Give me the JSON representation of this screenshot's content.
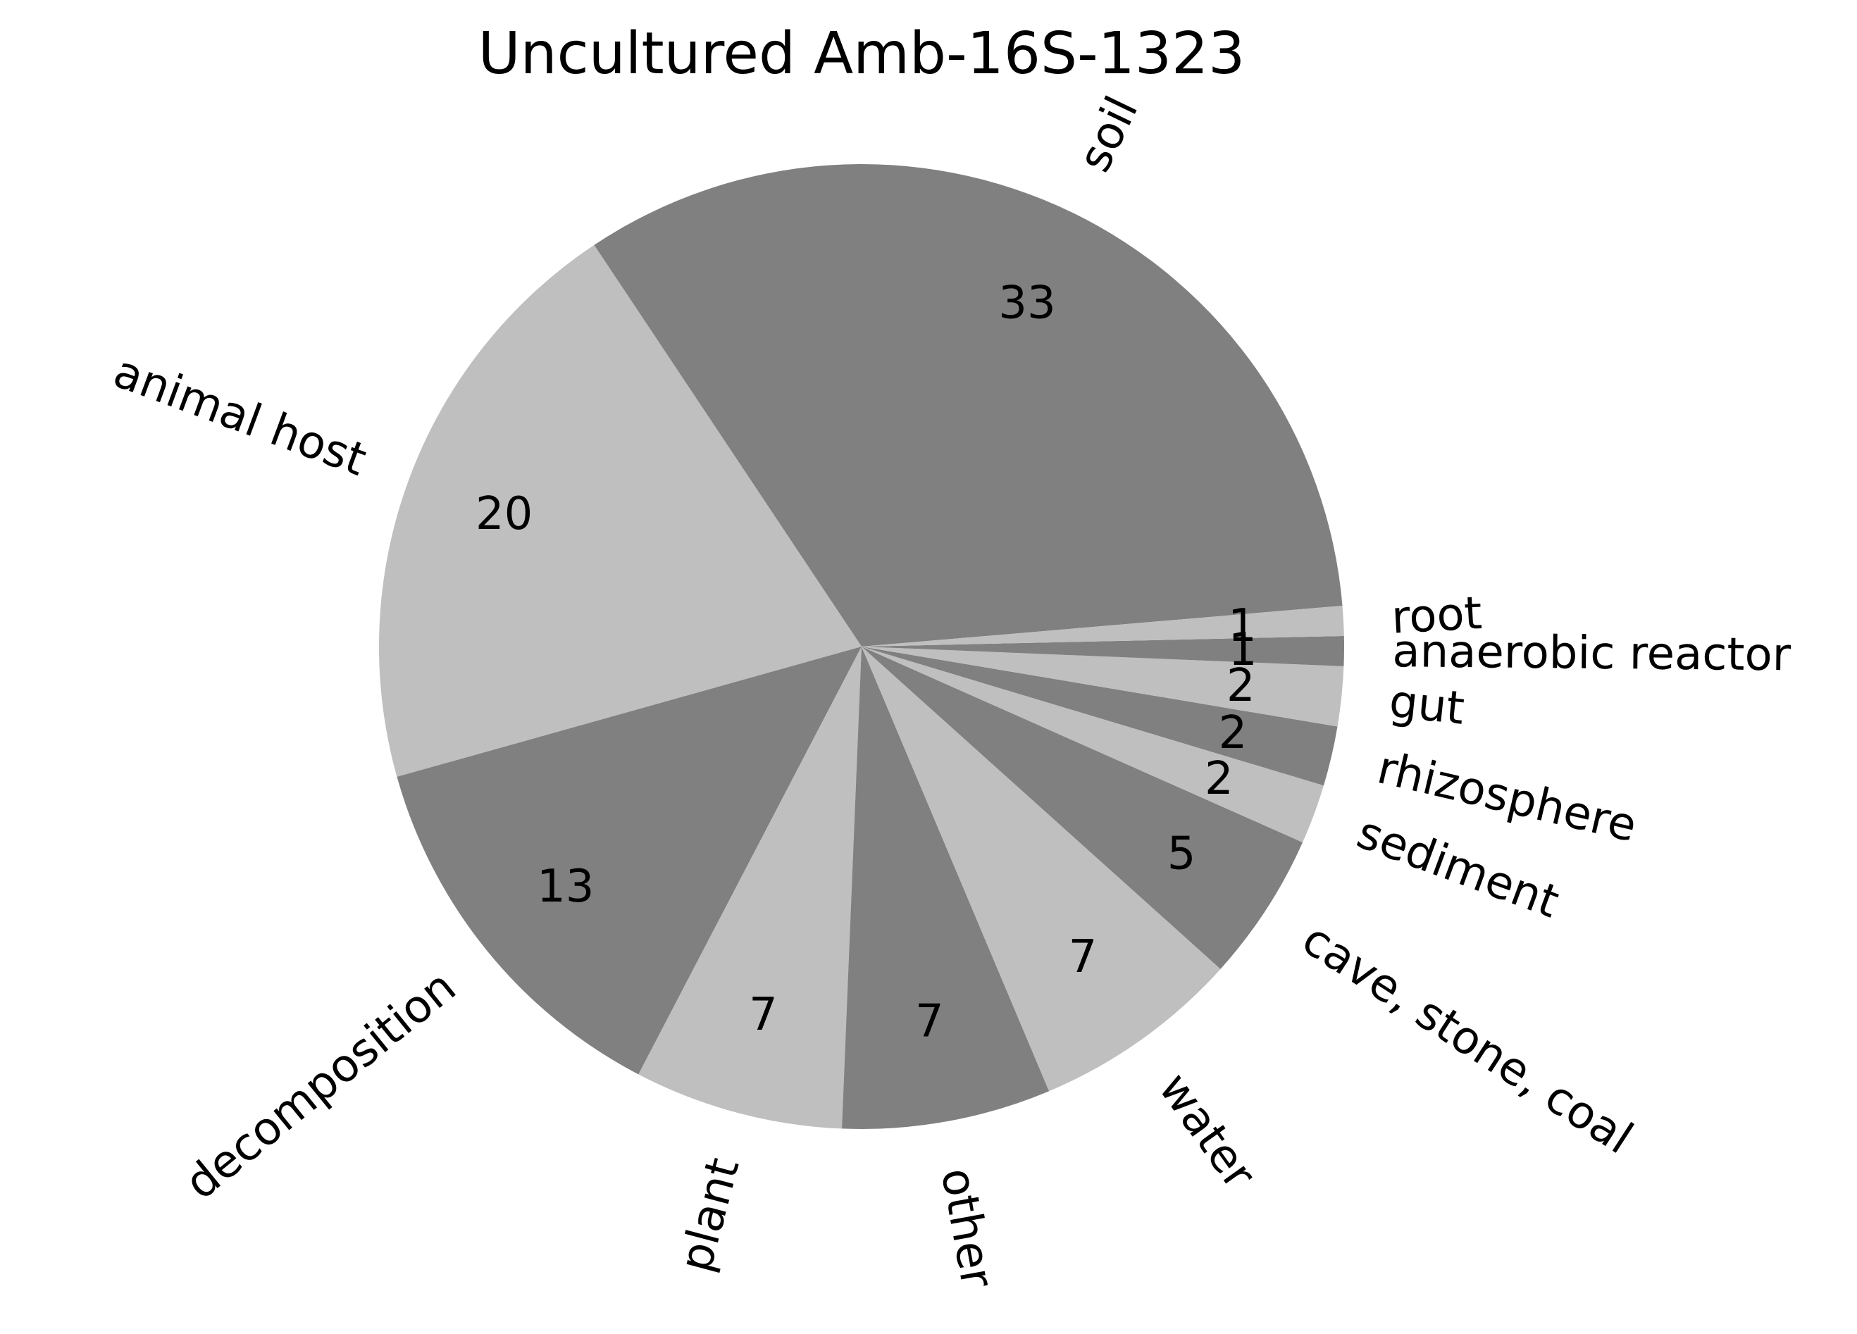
{
  "chart_data": {
    "type": "pie",
    "title": "Uncultured Amb-16S-1323",
    "categories": [
      "soil",
      "animal host",
      "decomposition",
      "plant",
      "other",
      "water",
      "cave, stone, coal",
      "sediment",
      "rhizosphere",
      "gut",
      "anaerobic reactor",
      "root"
    ],
    "values": [
      33,
      20,
      13,
      7,
      7,
      7,
      5,
      2,
      2,
      2,
      1,
      1
    ],
    "colors": [
      "#808080",
      "#bfbfbf",
      "#808080",
      "#bfbfbf",
      "#808080",
      "#bfbfbf",
      "#808080",
      "#bfbfbf",
      "#808080",
      "#bfbfbf",
      "#808080",
      "#bfbfbf"
    ],
    "start_angle_deg": 4.86,
    "direction": "counterclockwise",
    "legend": "none",
    "labels_rotated": true
  }
}
